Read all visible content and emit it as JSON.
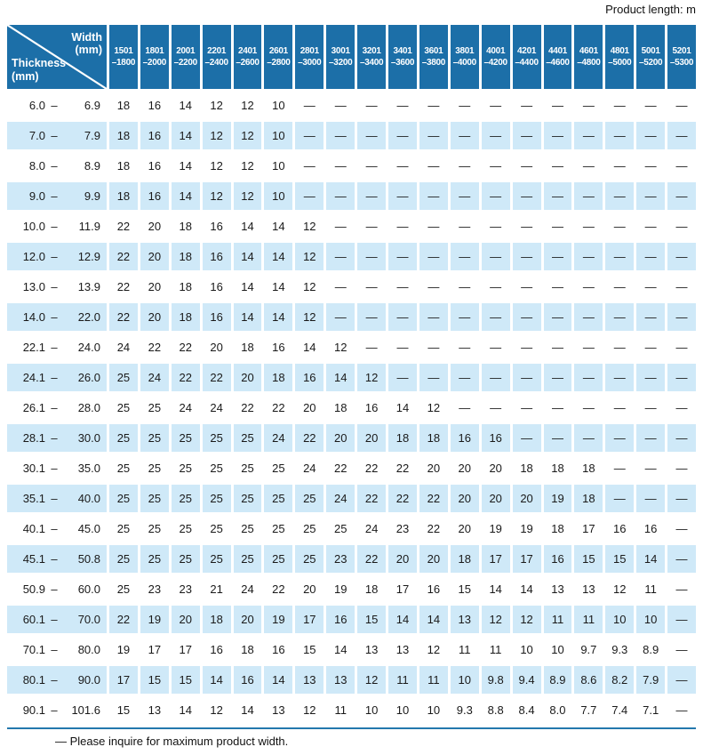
{
  "page": {
    "product_length_label": "Product length: m",
    "footnote": "— Please inquire for maximum product width."
  },
  "colors": {
    "header_blue": "#1c6fa8",
    "row_alt_blue": "#cfe9f8",
    "rule_blue": "#2478ad"
  },
  "table": {
    "corner": {
      "width_label": "Width",
      "width_unit": "(mm)",
      "thickness_label": "Thickness",
      "thickness_unit": "(mm)"
    },
    "range_dash": "–",
    "columns": [
      {
        "line1": "1501",
        "line2": "–1800"
      },
      {
        "line1": "1801",
        "line2": "–2000"
      },
      {
        "line1": "2001",
        "line2": "–2200"
      },
      {
        "line1": "2201",
        "line2": "–2400"
      },
      {
        "line1": "2401",
        "line2": "–2600"
      },
      {
        "line1": "2601",
        "line2": "–2800"
      },
      {
        "line1": "2801",
        "line2": "–3000"
      },
      {
        "line1": "3001",
        "line2": "–3200"
      },
      {
        "line1": "3201",
        "line2": "–3400"
      },
      {
        "line1": "3401",
        "line2": "–3600"
      },
      {
        "line1": "3601",
        "line2": "–3800"
      },
      {
        "line1": "3801",
        "line2": "–4000"
      },
      {
        "line1": "4001",
        "line2": "–4200"
      },
      {
        "line1": "4201",
        "line2": "–4400"
      },
      {
        "line1": "4401",
        "line2": "–4600"
      },
      {
        "line1": "4601",
        "line2": "–4800"
      },
      {
        "line1": "4801",
        "line2": "–5000"
      },
      {
        "line1": "5001",
        "line2": "–5200"
      },
      {
        "line1": "5201",
        "line2": "–5300"
      }
    ],
    "rows": [
      {
        "lo": "6.0",
        "hi": "6.9",
        "values": [
          "18",
          "16",
          "14",
          "12",
          "12",
          "10",
          "—",
          "—",
          "—",
          "—",
          "—",
          "—",
          "—",
          "—",
          "—",
          "—",
          "—",
          "—",
          "—"
        ]
      },
      {
        "lo": "7.0",
        "hi": "7.9",
        "values": [
          "18",
          "16",
          "14",
          "12",
          "12",
          "10",
          "—",
          "—",
          "—",
          "—",
          "—",
          "—",
          "—",
          "—",
          "—",
          "—",
          "—",
          "—",
          "—"
        ]
      },
      {
        "lo": "8.0",
        "hi": "8.9",
        "values": [
          "18",
          "16",
          "14",
          "12",
          "12",
          "10",
          "—",
          "—",
          "—",
          "—",
          "—",
          "—",
          "—",
          "—",
          "—",
          "—",
          "—",
          "—",
          "—"
        ]
      },
      {
        "lo": "9.0",
        "hi": "9.9",
        "values": [
          "18",
          "16",
          "14",
          "12",
          "12",
          "10",
          "—",
          "—",
          "—",
          "—",
          "—",
          "—",
          "—",
          "—",
          "—",
          "—",
          "—",
          "—",
          "—"
        ]
      },
      {
        "lo": "10.0",
        "hi": "11.9",
        "values": [
          "22",
          "20",
          "18",
          "16",
          "14",
          "14",
          "12",
          "—",
          "—",
          "—",
          "—",
          "—",
          "—",
          "—",
          "—",
          "—",
          "—",
          "—",
          "—"
        ]
      },
      {
        "lo": "12.0",
        "hi": "12.9",
        "values": [
          "22",
          "20",
          "18",
          "16",
          "14",
          "14",
          "12",
          "—",
          "—",
          "—",
          "—",
          "—",
          "—",
          "—",
          "—",
          "—",
          "—",
          "—",
          "—"
        ]
      },
      {
        "lo": "13.0",
        "hi": "13.9",
        "values": [
          "22",
          "20",
          "18",
          "16",
          "14",
          "14",
          "12",
          "—",
          "—",
          "—",
          "—",
          "—",
          "—",
          "—",
          "—",
          "—",
          "—",
          "—",
          "—"
        ]
      },
      {
        "lo": "14.0",
        "hi": "22.0",
        "values": [
          "22",
          "20",
          "18",
          "16",
          "14",
          "14",
          "12",
          "—",
          "—",
          "—",
          "—",
          "—",
          "—",
          "—",
          "—",
          "—",
          "—",
          "—",
          "—"
        ]
      },
      {
        "lo": "22.1",
        "hi": "24.0",
        "values": [
          "24",
          "22",
          "22",
          "20",
          "18",
          "16",
          "14",
          "12",
          "—",
          "—",
          "—",
          "—",
          "—",
          "—",
          "—",
          "—",
          "—",
          "—",
          "—"
        ]
      },
      {
        "lo": "24.1",
        "hi": "26.0",
        "values": [
          "25",
          "24",
          "22",
          "22",
          "20",
          "18",
          "16",
          "14",
          "12",
          "—",
          "—",
          "—",
          "—",
          "—",
          "—",
          "—",
          "—",
          "—",
          "—"
        ]
      },
      {
        "lo": "26.1",
        "hi": "28.0",
        "values": [
          "25",
          "25",
          "24",
          "24",
          "22",
          "22",
          "20",
          "18",
          "16",
          "14",
          "12",
          "—",
          "—",
          "—",
          "—",
          "—",
          "—",
          "—",
          "—"
        ]
      },
      {
        "lo": "28.1",
        "hi": "30.0",
        "values": [
          "25",
          "25",
          "25",
          "25",
          "25",
          "24",
          "22",
          "20",
          "20",
          "18",
          "18",
          "16",
          "16",
          "—",
          "—",
          "—",
          "—",
          "—",
          "—"
        ]
      },
      {
        "lo": "30.1",
        "hi": "35.0",
        "values": [
          "25",
          "25",
          "25",
          "25",
          "25",
          "25",
          "24",
          "22",
          "22",
          "22",
          "20",
          "20",
          "20",
          "18",
          "18",
          "18",
          "—",
          "—",
          "—"
        ]
      },
      {
        "lo": "35.1",
        "hi": "40.0",
        "values": [
          "25",
          "25",
          "25",
          "25",
          "25",
          "25",
          "25",
          "24",
          "22",
          "22",
          "22",
          "20",
          "20",
          "20",
          "19",
          "18",
          "—",
          "—",
          "—"
        ]
      },
      {
        "lo": "40.1",
        "hi": "45.0",
        "values": [
          "25",
          "25",
          "25",
          "25",
          "25",
          "25",
          "25",
          "25",
          "24",
          "23",
          "22",
          "20",
          "19",
          "19",
          "18",
          "17",
          "16",
          "16",
          "—"
        ]
      },
      {
        "lo": "45.1",
        "hi": "50.8",
        "values": [
          "25",
          "25",
          "25",
          "25",
          "25",
          "25",
          "25",
          "23",
          "22",
          "20",
          "20",
          "18",
          "17",
          "17",
          "16",
          "15",
          "15",
          "14",
          "—"
        ]
      },
      {
        "lo": "50.9",
        "hi": "60.0",
        "values": [
          "25",
          "23",
          "23",
          "21",
          "24",
          "22",
          "20",
          "19",
          "18",
          "17",
          "16",
          "15",
          "14",
          "14",
          "13",
          "13",
          "12",
          "11",
          "—"
        ]
      },
      {
        "lo": "60.1",
        "hi": "70.0",
        "values": [
          "22",
          "19",
          "20",
          "18",
          "20",
          "19",
          "17",
          "16",
          "15",
          "14",
          "14",
          "13",
          "12",
          "12",
          "11",
          "11",
          "10",
          "10",
          "—"
        ]
      },
      {
        "lo": "70.1",
        "hi": "80.0",
        "values": [
          "19",
          "17",
          "17",
          "16",
          "18",
          "16",
          "15",
          "14",
          "13",
          "13",
          "12",
          "11",
          "11",
          "10",
          "10",
          "9.7",
          "9.3",
          "8.9",
          "—"
        ]
      },
      {
        "lo": "80.1",
        "hi": "90.0",
        "values": [
          "17",
          "15",
          "15",
          "14",
          "16",
          "14",
          "13",
          "13",
          "12",
          "11",
          "11",
          "10",
          "9.8",
          "9.4",
          "8.9",
          "8.6",
          "8.2",
          "7.9",
          "—"
        ]
      },
      {
        "lo": "90.1",
        "hi": "101.6",
        "values": [
          "15",
          "13",
          "14",
          "12",
          "14",
          "13",
          "12",
          "11",
          "10",
          "10",
          "10",
          "9.3",
          "8.8",
          "8.4",
          "8.0",
          "7.7",
          "7.4",
          "7.1",
          "—"
        ]
      }
    ]
  }
}
